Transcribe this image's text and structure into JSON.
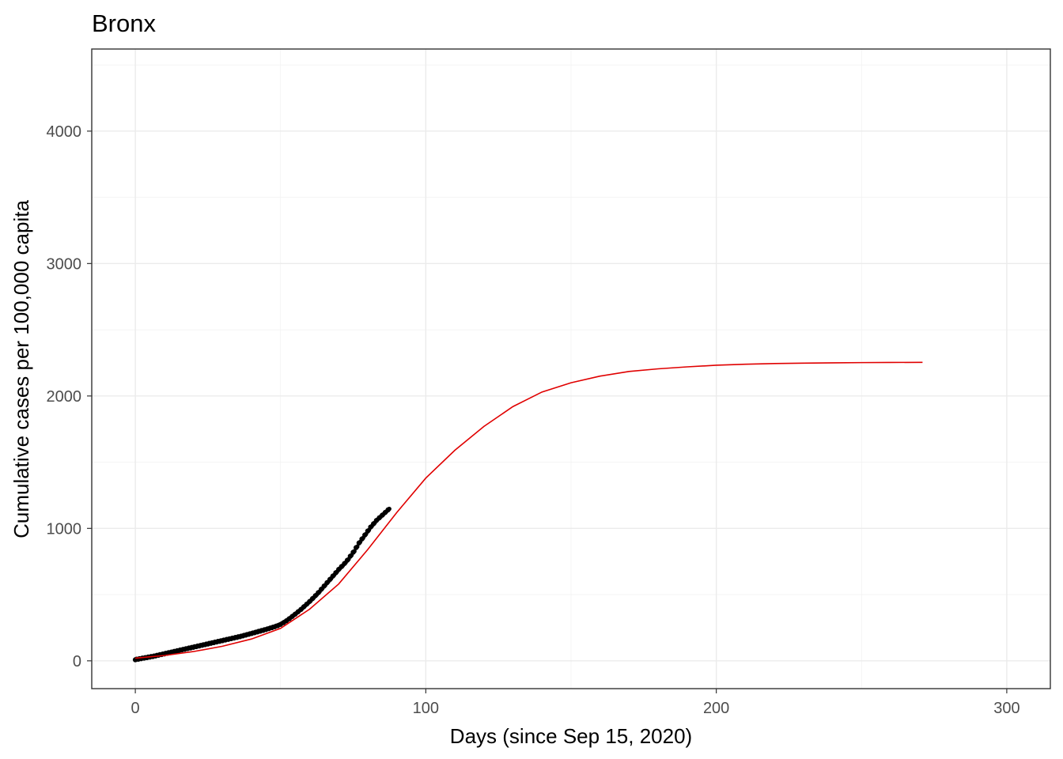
{
  "chart_data": {
    "type": "scatter",
    "title": "Bronx",
    "xlabel": "Days (since Sep 15, 2020)",
    "ylabel": "Cumulative cases per 100,000 capita",
    "xlim": [
      -15,
      315
    ],
    "ylim": [
      -210,
      4620
    ],
    "x_ticks": [
      0,
      100,
      200,
      300
    ],
    "y_ticks": [
      0,
      1000,
      2000,
      3000,
      4000
    ],
    "grid": true,
    "legend": "none",
    "series": [
      {
        "kind": "points",
        "color": "#000000",
        "x": [
          0,
          1,
          2,
          3,
          4,
          5,
          6,
          7,
          8,
          9,
          10,
          11,
          12,
          13,
          14,
          15,
          16,
          17,
          18,
          19,
          20,
          21,
          22,
          23,
          24,
          25,
          26,
          27,
          28,
          29,
          30,
          31,
          32,
          33,
          34,
          35,
          36,
          37,
          38,
          39,
          40,
          41,
          42,
          43,
          44,
          45,
          46,
          47,
          48,
          49,
          50,
          51,
          52,
          53,
          54,
          55,
          56,
          57,
          58,
          59,
          60,
          61,
          62,
          63,
          64,
          65,
          66,
          67,
          68,
          69,
          70,
          71,
          72,
          73,
          74,
          75,
          76,
          77,
          78,
          79,
          80,
          81,
          82,
          83,
          84,
          85,
          86,
          87
        ],
        "y": [
          8,
          12,
          16,
          20,
          24,
          28,
          32,
          37,
          42,
          47,
          52,
          57,
          62,
          67,
          72,
          77,
          82,
          87,
          92,
          97,
          102,
          107,
          112,
          117,
          122,
          127,
          132,
          137,
          142,
          147,
          152,
          157,
          162,
          167,
          172,
          177,
          182,
          188,
          194,
          200,
          206,
          212,
          218,
          224,
          230,
          236,
          243,
          250,
          257,
          265,
          275,
          288,
          302,
          318,
          335,
          352,
          370,
          388,
          408,
          428,
          448,
          470,
          492,
          515,
          540,
          565,
          590,
          615,
          640,
          665,
          690,
          712,
          735,
          760,
          790,
          820,
          855,
          890,
          920,
          950,
          980,
          1010,
          1035,
          1060,
          1080,
          1100,
          1120,
          1140
        ]
      },
      {
        "kind": "line",
        "color": "#e00000",
        "x": [
          0,
          10,
          20,
          30,
          40,
          50,
          60,
          70,
          80,
          90,
          100,
          110,
          120,
          130,
          140,
          150,
          160,
          170,
          180,
          190,
          200,
          210,
          220,
          230,
          240,
          250,
          260,
          271
        ],
        "y": [
          20,
          40,
          70,
          110,
          165,
          245,
          390,
          580,
          840,
          1120,
          1380,
          1590,
          1770,
          1920,
          2030,
          2100,
          2150,
          2185,
          2205,
          2220,
          2232,
          2240,
          2245,
          2248,
          2250,
          2252,
          2253,
          2254
        ]
      }
    ]
  }
}
